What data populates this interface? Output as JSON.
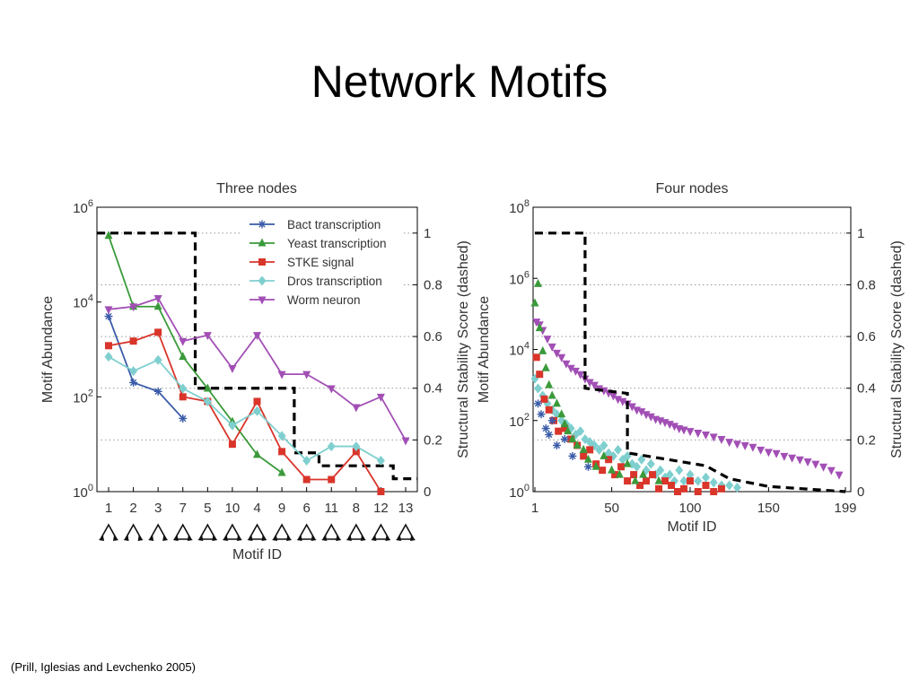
{
  "slide": {
    "title": "Network Motifs",
    "citation": "(Prill, Iglesias and Levchenko 2005)"
  },
  "chart_data": [
    {
      "type": "line",
      "title": "Three nodes",
      "xlabel": "Motif ID",
      "ylabel": "Motif Abundance",
      "y2label": "Structural Stability Score (dashed)",
      "yscale": "log",
      "categories": [
        "1",
        "2",
        "3",
        "7",
        "5",
        "10",
        "4",
        "9",
        "6",
        "11",
        "8",
        "12",
        "13"
      ],
      "ylim": [
        1,
        1000000
      ],
      "yticks": [
        "10^0",
        "10^2",
        "10^4",
        "10^6"
      ],
      "y2lim": [
        0,
        1.1
      ],
      "y2ticks": [
        "0",
        "0.2",
        "0.4",
        "0.6",
        "0.8",
        "1"
      ],
      "legend_position": "top-right",
      "series": [
        {
          "name": "Bact transcription",
          "color": "#3a5ba8",
          "marker": "star",
          "values": [
            5000,
            200,
            130,
            35,
            null,
            null,
            null,
            null,
            null,
            null,
            null,
            null,
            null
          ]
        },
        {
          "name": "Yeast transcription",
          "color": "#3a9a3a",
          "marker": "triangle-up",
          "values": [
            250000,
            8000,
            8000,
            700,
            150,
            30,
            6,
            2.5,
            null,
            null,
            null,
            null,
            null
          ]
        },
        {
          "name": "STKE signal",
          "color": "#d9352b",
          "marker": "square",
          "values": [
            1200,
            1500,
            2300,
            100,
            80,
            10,
            80,
            7,
            1.8,
            1.8,
            7,
            1,
            null
          ]
        },
        {
          "name": "Dros transcription",
          "color": "#7fcfcf",
          "marker": "diamond",
          "values": [
            700,
            350,
            600,
            150,
            80,
            25,
            50,
            15,
            4.5,
            9,
            9,
            4.5,
            null
          ]
        },
        {
          "name": "Worm neuron",
          "color": "#a24fb5",
          "marker": "triangle-down",
          "values": [
            7000,
            8000,
            12000,
            1500,
            2000,
            400,
            2000,
            300,
            300,
            150,
            60,
            100,
            12
          ]
        }
      ],
      "stability_dashed": {
        "categories": [
          "1",
          "2",
          "3",
          "7",
          "5",
          "10",
          "4",
          "9",
          "6",
          "11",
          "8",
          "12",
          "13"
        ],
        "values": [
          1.0,
          1.0,
          1.0,
          1.0,
          0.4,
          0.4,
          0.4,
          0.4,
          0.15,
          0.1,
          0.1,
          0.1,
          0.05
        ]
      }
    },
    {
      "type": "scatter",
      "title": "Four nodes",
      "xlabel": "Motif ID",
      "ylabel": "Motif Abundance",
      "y2label": "Structural Stability Score (dashed)",
      "yscale": "log",
      "xlim": [
        1,
        199
      ],
      "xticks": [
        "1",
        "50",
        "100",
        "150",
        "199"
      ],
      "ylim": [
        1,
        100000000
      ],
      "yticks": [
        "10^0",
        "10^2",
        "10^4",
        "10^6",
        "10^8"
      ],
      "y2lim": [
        0,
        1.1
      ],
      "y2ticks": [
        "0",
        "0.2",
        "0.4",
        "0.6",
        "0.8",
        "1"
      ],
      "series": [
        {
          "name": "Bact transcription",
          "color": "#3a5ba8",
          "marker": "star",
          "points": [
            [
              3,
              300
            ],
            [
              5,
              150
            ],
            [
              8,
              60
            ],
            [
              10,
              40
            ],
            [
              12,
              100
            ],
            [
              15,
              20
            ],
            [
              20,
              30
            ],
            [
              25,
              10
            ],
            [
              35,
              5
            ]
          ]
        },
        {
          "name": "Yeast transcription",
          "color": "#3a9a3a",
          "marker": "triangle-up",
          "points": [
            [
              1,
              200000
            ],
            [
              3,
              700000
            ],
            [
              4,
              40000
            ],
            [
              6,
              9000
            ],
            [
              8,
              3000
            ],
            [
              10,
              1000
            ],
            [
              12,
              500
            ],
            [
              15,
              300
            ],
            [
              18,
              150
            ],
            [
              20,
              80
            ],
            [
              22,
              50
            ],
            [
              25,
              30
            ],
            [
              28,
              20
            ],
            [
              32,
              15
            ],
            [
              35,
              8
            ],
            [
              40,
              5
            ],
            [
              45,
              10
            ],
            [
              50,
              4
            ],
            [
              55,
              3
            ],
            [
              60,
              6
            ],
            [
              65,
              2
            ],
            [
              70,
              3
            ],
            [
              80,
              2
            ]
          ]
        },
        {
          "name": "STKE signal",
          "color": "#d9352b",
          "marker": "square",
          "points": [
            [
              2,
              6000
            ],
            [
              4,
              2000
            ],
            [
              7,
              400
            ],
            [
              10,
              200
            ],
            [
              13,
              100
            ],
            [
              16,
              50
            ],
            [
              20,
              60
            ],
            [
              24,
              30
            ],
            [
              28,
              20
            ],
            [
              32,
              10
            ],
            [
              36,
              15
            ],
            [
              40,
              6
            ],
            [
              44,
              4
            ],
            [
              48,
              8
            ],
            [
              52,
              3
            ],
            [
              56,
              5
            ],
            [
              60,
              2
            ],
            [
              64,
              3
            ],
            [
              68,
              1.5
            ],
            [
              72,
              2
            ],
            [
              76,
              3
            ],
            [
              80,
              1.2
            ],
            [
              84,
              2
            ],
            [
              88,
              1.5
            ],
            [
              92,
              1
            ],
            [
              96,
              1.2
            ],
            [
              100,
              2
            ],
            [
              105,
              1
            ],
            [
              110,
              1.5
            ],
            [
              115,
              1
            ],
            [
              120,
              1.2
            ]
          ]
        },
        {
          "name": "Dros transcription",
          "color": "#7fcfcf",
          "marker": "diamond",
          "points": [
            [
              1,
              1500
            ],
            [
              3,
              800
            ],
            [
              6,
              500
            ],
            [
              9,
              300
            ],
            [
              12,
              200
            ],
            [
              15,
              150
            ],
            [
              18,
              100
            ],
            [
              21,
              80
            ],
            [
              24,
              60
            ],
            [
              27,
              40
            ],
            [
              30,
              50
            ],
            [
              33,
              30
            ],
            [
              36,
              25
            ],
            [
              39,
              20
            ],
            [
              42,
              15
            ],
            [
              45,
              20
            ],
            [
              48,
              12
            ],
            [
              51,
              10
            ],
            [
              54,
              15
            ],
            [
              57,
              8
            ],
            [
              60,
              10
            ],
            [
              63,
              6
            ],
            [
              66,
              5
            ],
            [
              69,
              8
            ],
            [
              72,
              4
            ],
            [
              75,
              6
            ],
            [
              78,
              3
            ],
            [
              81,
              4
            ],
            [
              84,
              2.5
            ],
            [
              87,
              3
            ],
            [
              90,
              2
            ],
            [
              93,
              4
            ],
            [
              96,
              2
            ],
            [
              100,
              3
            ],
            [
              105,
              2
            ],
            [
              110,
              2.5
            ],
            [
              115,
              1.8
            ],
            [
              120,
              1.5
            ],
            [
              125,
              1.5
            ],
            [
              130,
              1.3
            ]
          ]
        },
        {
          "name": "Worm neuron",
          "color": "#a24fb5",
          "marker": "triangle-down",
          "points": [
            [
              2,
              60000
            ],
            [
              4,
              50000
            ],
            [
              6,
              35000
            ],
            [
              9,
              20000
            ],
            [
              12,
              12000
            ],
            [
              15,
              8000
            ],
            [
              18,
              6000
            ],
            [
              21,
              4000
            ],
            [
              24,
              3000
            ],
            [
              27,
              2500
            ],
            [
              30,
              2000
            ],
            [
              33,
              1500
            ],
            [
              36,
              1200
            ],
            [
              39,
              1000
            ],
            [
              42,
              800
            ],
            [
              45,
              700
            ],
            [
              48,
              600
            ],
            [
              51,
              500
            ],
            [
              54,
              400
            ],
            [
              57,
              350
            ],
            [
              60,
              300
            ],
            [
              63,
              250
            ],
            [
              66,
              200
            ],
            [
              69,
              180
            ],
            [
              72,
              150
            ],
            [
              75,
              130
            ],
            [
              78,
              110
            ],
            [
              81,
              100
            ],
            [
              84,
              90
            ],
            [
              87,
              80
            ],
            [
              90,
              70
            ],
            [
              93,
              60
            ],
            [
              96,
              55
            ],
            [
              100,
              50
            ],
            [
              105,
              45
            ],
            [
              110,
              40
            ],
            [
              115,
              35
            ],
            [
              120,
              30
            ],
            [
              125,
              25
            ],
            [
              130,
              22
            ],
            [
              135,
              20
            ],
            [
              140,
              18
            ],
            [
              145,
              15
            ],
            [
              150,
              13
            ],
            [
              155,
              12
            ],
            [
              160,
              10
            ],
            [
              165,
              9
            ],
            [
              170,
              8
            ],
            [
              175,
              7
            ],
            [
              180,
              6
            ],
            [
              185,
              5
            ],
            [
              190,
              4
            ],
            [
              195,
              3
            ]
          ]
        }
      ],
      "stability_dashed": {
        "points": [
          [
            1,
            1.0
          ],
          [
            33,
            1.0
          ],
          [
            33,
            0.4
          ],
          [
            60,
            0.38
          ],
          [
            60,
            0.15
          ],
          [
            110,
            0.1
          ],
          [
            125,
            0.05
          ],
          [
            150,
            0.02
          ],
          [
            199,
            0.0
          ]
        ]
      }
    }
  ]
}
